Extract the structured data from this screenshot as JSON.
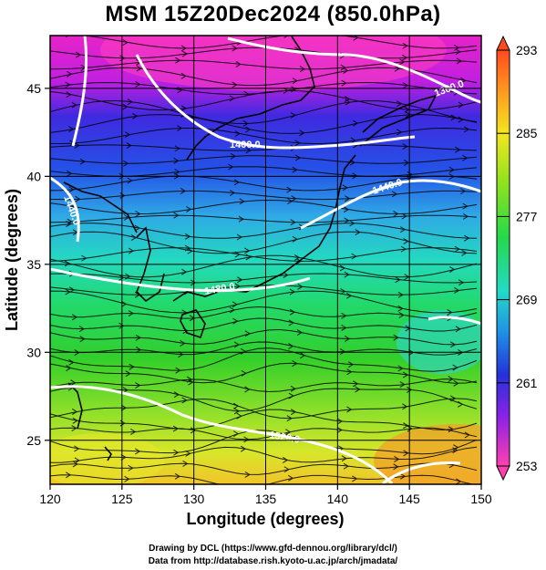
{
  "title": "MSM 15Z20Dec2024 (850.0hPa)",
  "axes": {
    "xlabel": "Longitude (degrees)",
    "ylabel": "Latitude  (degrees)",
    "xlim": [
      120,
      150
    ],
    "ylim": [
      22.5,
      48
    ],
    "xticks": [
      120,
      125,
      130,
      135,
      140,
      145,
      150
    ],
    "yticks": [
      25,
      30,
      35,
      40,
      45
    ]
  },
  "colorbar": {
    "min": 253,
    "max": 293,
    "tick_labels": [
      "293",
      "285",
      "277",
      "269",
      "261",
      "253"
    ],
    "tick_values": [
      293,
      285,
      277,
      269,
      261,
      253
    ],
    "colors": [
      "#ff4aa6",
      "#d12bd6",
      "#7a22ea",
      "#2a2ad9",
      "#1f6fe6",
      "#21c6e6",
      "#1fe39f",
      "#35d11f",
      "#9ae31f",
      "#e6e61f",
      "#ffb21f",
      "#ff5a1f"
    ]
  },
  "contours": [
    {
      "label": "1360.0"
    },
    {
      "label": "1400.0"
    },
    {
      "label": "1440.0"
    },
    {
      "label": "1440.0"
    },
    {
      "label": "1480.0"
    },
    {
      "label": "1520.0"
    }
  ],
  "credits": {
    "line1": "Drawing by DCL (https://www.gfd-dennou.org/library/dcl/)",
    "line2": "Data from http://database.rish.kyoto-u.ac.jp/arch/jmadata/"
  }
}
